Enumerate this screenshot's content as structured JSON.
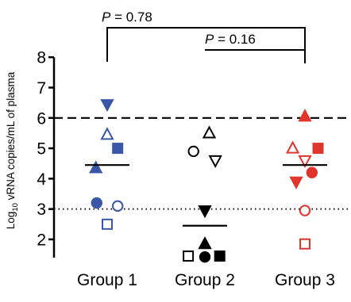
{
  "chart_data": {
    "type": "scatter",
    "ylabel_parts": [
      "Log",
      "10",
      " vRNA copies/mL of plasma"
    ],
    "categories": [
      "Group 1",
      "Group 2",
      "Group 3"
    ],
    "ylim": [
      1.4,
      8
    ],
    "yticks": [
      2,
      3,
      4,
      5,
      6,
      7,
      8
    ],
    "reference_lines": [
      {
        "y": 6,
        "style": "dashed"
      },
      {
        "y": 3,
        "style": "dotted"
      }
    ],
    "means": [
      4.45,
      2.45,
      4.45
    ],
    "comparisons": [
      {
        "label_prefix": "P",
        "label_rest": " = 0.78",
        "from": "Group 1",
        "to": "Group 3"
      },
      {
        "label_prefix": "P",
        "label_rest": " = 0.16",
        "from": "Group 2",
        "to": "Group 3"
      }
    ],
    "colors": {
      "Group 1": "#3a57a7",
      "Group 2": "#000000",
      "Group 3": "#e0342c"
    },
    "series": [
      {
        "group": "Group 1",
        "points": [
          {
            "y": 6.45,
            "dx": 0.0,
            "shape": "triangle-down",
            "fill": true
          },
          {
            "y": 5.45,
            "dx": 0.0,
            "shape": "triangle-up",
            "fill": false
          },
          {
            "y": 5.0,
            "dx": 0.12,
            "shape": "square",
            "fill": true
          },
          {
            "y": 4.35,
            "dx": -0.13,
            "shape": "triangle-up",
            "fill": true
          },
          {
            "y": 3.2,
            "dx": -0.12,
            "shape": "circle",
            "fill": true
          },
          {
            "y": 3.1,
            "dx": 0.12,
            "shape": "circle",
            "fill": false
          },
          {
            "y": 2.5,
            "dx": 0.0,
            "shape": "square",
            "fill": false
          }
        ]
      },
      {
        "group": "Group 2",
        "points": [
          {
            "y": 5.5,
            "dx": 0.05,
            "shape": "triangle-up",
            "fill": false
          },
          {
            "y": 4.9,
            "dx": -0.13,
            "shape": "circle",
            "fill": false
          },
          {
            "y": 4.6,
            "dx": 0.12,
            "shape": "triangle-down",
            "fill": false
          },
          {
            "y": 2.95,
            "dx": 0.0,
            "shape": "triangle-down",
            "fill": true
          },
          {
            "y": 1.85,
            "dx": 0.0,
            "shape": "triangle-up",
            "fill": true
          },
          {
            "y": 1.45,
            "dx": -0.19,
            "shape": "square",
            "fill": false
          },
          {
            "y": 1.42,
            "dx": 0.0,
            "shape": "circle",
            "fill": true
          },
          {
            "y": 1.45,
            "dx": 0.17,
            "shape": "square",
            "fill": true
          }
        ]
      },
      {
        "group": "Group 3",
        "points": [
          {
            "y": 6.05,
            "dx": 0.0,
            "shape": "triangle-up",
            "fill": true
          },
          {
            "y": 5.0,
            "dx": -0.14,
            "shape": "triangle-up",
            "fill": false
          },
          {
            "y": 5.0,
            "dx": 0.15,
            "shape": "square",
            "fill": true
          },
          {
            "y": 4.6,
            "dx": 0.0,
            "shape": "triangle-down",
            "fill": false
          },
          {
            "y": 4.2,
            "dx": 0.08,
            "shape": "circle",
            "fill": true
          },
          {
            "y": 3.9,
            "dx": -0.1,
            "shape": "triangle-down",
            "fill": true
          },
          {
            "y": 2.95,
            "dx": 0.0,
            "shape": "circle",
            "fill": false
          },
          {
            "y": 1.85,
            "dx": 0.0,
            "shape": "square",
            "fill": false
          }
        ]
      }
    ]
  }
}
